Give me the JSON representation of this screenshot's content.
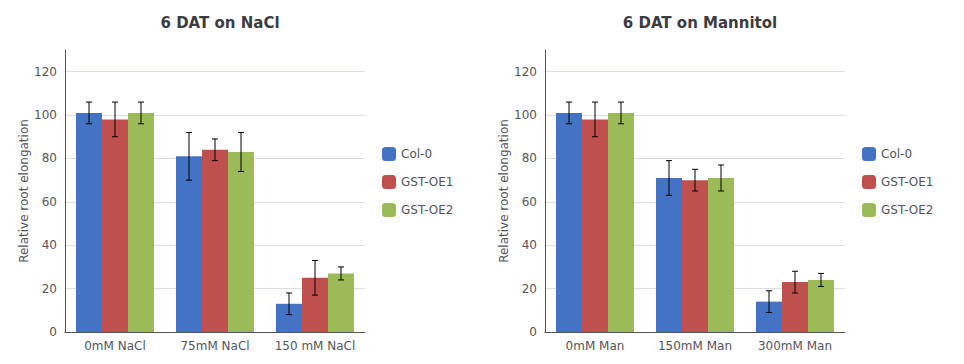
{
  "chart_data": [
    {
      "type": "bar",
      "title": "6 DAT on NaCl",
      "categories": [
        "0mM NaCl",
        "75mM NaCl",
        "150 mM NaCl"
      ],
      "series": [
        {
          "name": "Col-0",
          "color": "#4472c4",
          "values": [
            101,
            81,
            13
          ],
          "errors": [
            5,
            11,
            5
          ]
        },
        {
          "name": "GST-OE1",
          "color": "#c0504d",
          "values": [
            98,
            84,
            25
          ],
          "errors": [
            8,
            5,
            8
          ]
        },
        {
          "name": "GST-OE2",
          "color": "#9bbb59",
          "values": [
            101,
            83,
            27
          ],
          "errors": [
            5,
            9,
            3
          ]
        }
      ],
      "ylabel": "Relative root elongation",
      "ylim": [
        0,
        130
      ],
      "yticks": [
        0,
        20,
        40,
        60,
        80,
        100,
        120
      ],
      "grid": true,
      "legend": "right"
    },
    {
      "type": "bar",
      "title": "6 DAT on Mannitol",
      "categories": [
        "0mM Man",
        "150mM Man",
        "300mM Man"
      ],
      "series": [
        {
          "name": "Col-0",
          "color": "#4472c4",
          "values": [
            101,
            71,
            14
          ],
          "errors": [
            5,
            8,
            5
          ]
        },
        {
          "name": "GST-OE1",
          "color": "#c0504d",
          "values": [
            98,
            70,
            23
          ],
          "errors": [
            8,
            5,
            5
          ]
        },
        {
          "name": "GST-OE2",
          "color": "#9bbb59",
          "values": [
            101,
            71,
            24
          ],
          "errors": [
            5,
            6,
            3
          ]
        }
      ],
      "ylabel": "Relative root elongation",
      "ylim": [
        0,
        130
      ],
      "yticks": [
        0,
        20,
        40,
        60,
        80,
        100,
        120
      ],
      "grid": true,
      "legend": "right"
    }
  ]
}
